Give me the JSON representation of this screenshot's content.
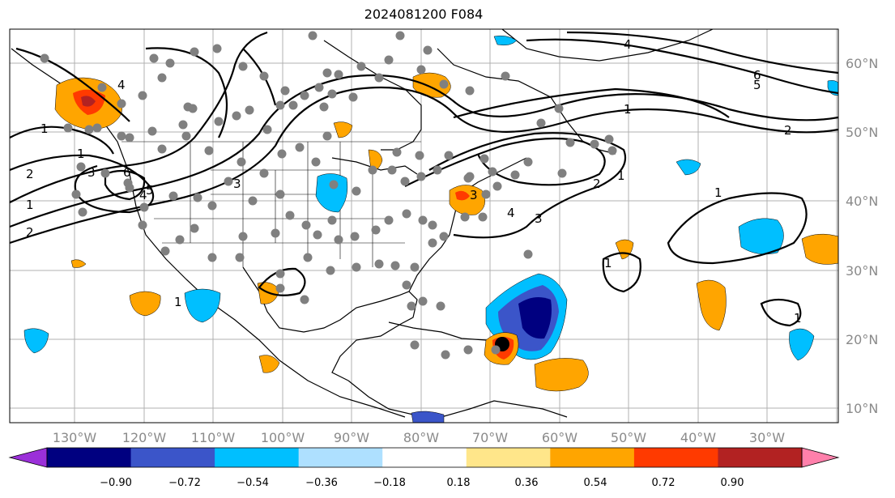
{
  "title": "2024081200 F084",
  "lat_labels": [
    "60°N",
    "50°N",
    "40°N",
    "30°N",
    "20°N",
    "10°N"
  ],
  "lon_labels": [
    "130°W",
    "120°W",
    "110°W",
    "100°W",
    "90°W",
    "80°W",
    "70°W",
    "60°W",
    "50°W",
    "40°W",
    "30°W"
  ],
  "colorbar": {
    "ticks": [
      "−0.90",
      "−0.72",
      "−0.54",
      "−0.36",
      "−0.18",
      "0.18",
      "0.36",
      "0.54",
      "0.72",
      "0.90"
    ],
    "colors": [
      "#9b30d9",
      "#000080",
      "#3b55c9",
      "#00bfff",
      "#aee0ff",
      "#ffffff",
      "#ffe68a",
      "#ffa500",
      "#ff3a00",
      "#b22222",
      "#ff80ab"
    ]
  },
  "contour_labels": [
    "1",
    "2",
    "3",
    "4",
    "5",
    "6",
    "1",
    "2",
    "3",
    "4",
    "1",
    "2",
    "3",
    "4",
    "5",
    "6",
    "1",
    "1",
    "1",
    "1",
    "1",
    "1",
    "2",
    "3",
    "4"
  ]
}
